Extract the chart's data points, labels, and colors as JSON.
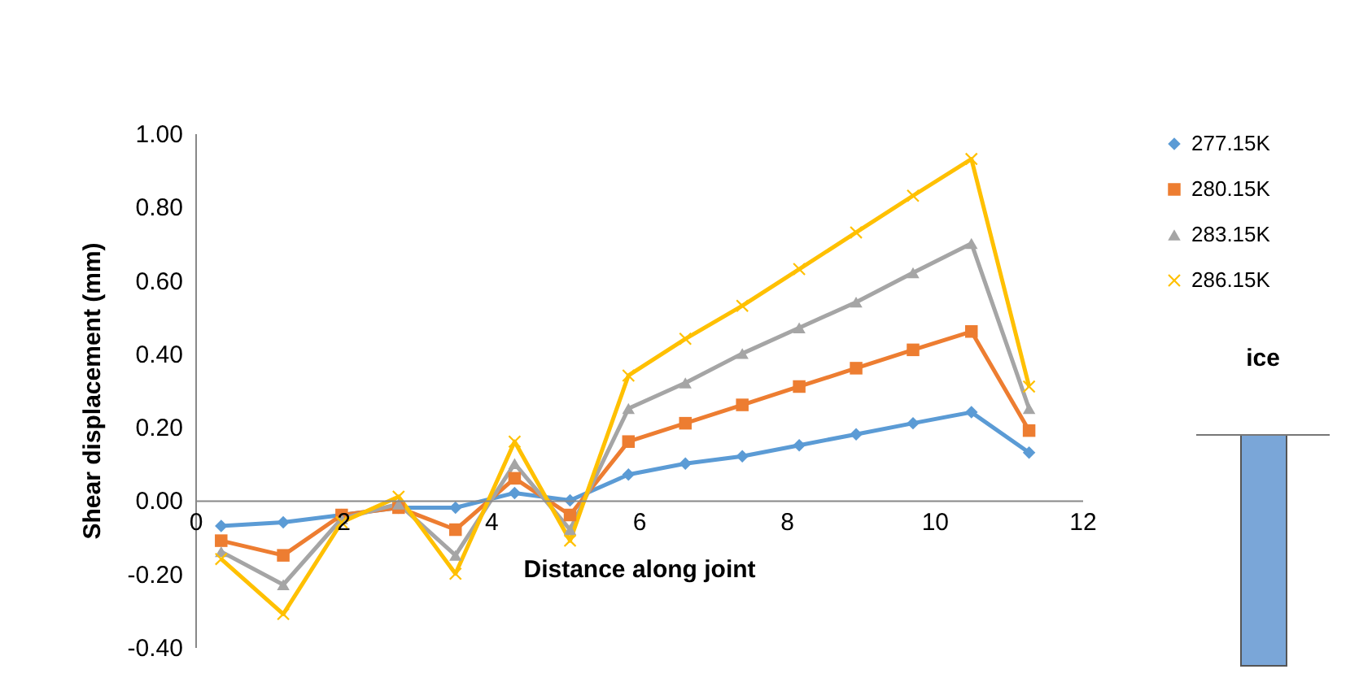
{
  "chart_data": {
    "type": "line",
    "xlabel": "Distance along joint",
    "ylabel": "Shear displacement (mm)",
    "annotations": [
      "ice"
    ],
    "xlim": [
      0,
      12
    ],
    "xticks": [
      0,
      2,
      4,
      6,
      8,
      10,
      12
    ],
    "ylim": [
      -0.4,
      1.0
    ],
    "yticks": [
      {
        "value": -0.4,
        "label": "-0.40"
      },
      {
        "value": -0.2,
        "label": "-0.20"
      },
      {
        "value": 0,
        "label": "0.00"
      },
      {
        "value": 0.2,
        "label": "0.20"
      },
      {
        "value": 0.4,
        "label": "0.40"
      },
      {
        "value": 0.6,
        "label": "0.60"
      },
      {
        "value": 0.8,
        "label": "0.80"
      },
      {
        "value": 1.0,
        "label": "1.00"
      }
    ],
    "x": [
      0.35,
      1.19,
      1.98,
      2.75,
      3.52,
      4.32,
      5.07,
      5.86,
      6.63,
      7.4,
      8.17,
      8.94,
      9.71,
      10.5,
      11.28
    ],
    "grid": false,
    "legend": "right",
    "series": [
      {
        "name": "277.15K",
        "color": "#5b9bd5",
        "marker": "diamond",
        "values": [
          -0.07,
          -0.06,
          -0.04,
          -0.02,
          -0.02,
          0.02,
          0.0,
          0.07,
          0.1,
          0.12,
          0.15,
          0.18,
          0.21,
          0.24,
          0.13
        ]
      },
      {
        "name": "280.15K",
        "color": "#ed7d31",
        "marker": "square",
        "values": [
          -0.11,
          -0.15,
          -0.04,
          -0.02,
          -0.08,
          0.06,
          -0.04,
          0.16,
          0.21,
          0.26,
          0.31,
          0.36,
          0.41,
          0.46,
          0.19
        ]
      },
      {
        "name": "283.15K",
        "color": "#a5a5a5",
        "marker": "triangle",
        "values": [
          -0.14,
          -0.23,
          -0.05,
          -0.01,
          -0.15,
          0.1,
          -0.08,
          0.25,
          0.32,
          0.4,
          0.47,
          0.54,
          0.62,
          0.7,
          0.25
        ]
      },
      {
        "name": "286.15K",
        "color": "#ffc000",
        "marker": "cross",
        "values": [
          -0.16,
          -0.31,
          -0.06,
          0.01,
          -0.2,
          0.16,
          -0.11,
          0.34,
          0.44,
          0.53,
          0.63,
          0.73,
          0.83,
          0.93,
          0.31
        ]
      }
    ]
  }
}
